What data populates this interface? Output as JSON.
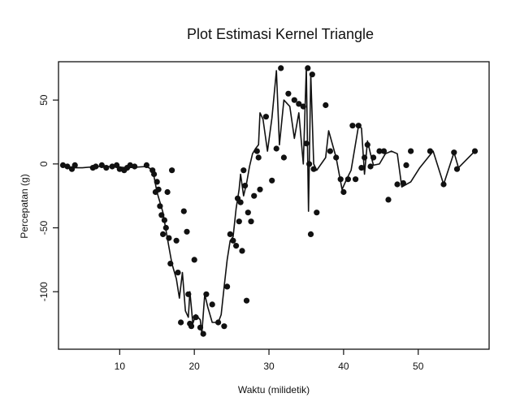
{
  "chart_data": {
    "type": "scatter",
    "title": "Plot Estimasi Kernel Triangle",
    "xlabel": "Waktu (milidetik)",
    "ylabel": "Percepatan (g)",
    "xlim": [
      1.8,
      59.5
    ],
    "ylim": [
      -145,
      80
    ],
    "xticks": [
      10,
      20,
      30,
      40,
      50
    ],
    "yticks": [
      -100,
      -50,
      0,
      50
    ],
    "grid": false,
    "series": [
      {
        "role": "observations",
        "x": [
          2.4,
          3.0,
          3.6,
          4.0,
          6.4,
          6.8,
          7.6,
          8.2,
          9.0,
          9.6,
          10.0,
          10.6,
          11.0,
          11.4,
          12.0,
          13.6,
          14.4,
          14.6,
          14.8,
          15.0,
          15.2,
          15.4,
          15.6,
          15.8,
          16.0,
          16.2,
          16.4,
          16.6,
          16.8,
          17.0,
          17.6,
          17.8,
          18.2,
          18.6,
          19.0,
          19.2,
          19.4,
          19.6,
          20.0,
          20.2,
          20.8,
          21.2,
          21.6,
          22.4,
          23.2,
          24.0,
          24.4,
          24.8,
          25.2,
          25.6,
          25.8,
          26.0,
          26.2,
          26.4,
          26.6,
          26.8,
          27.0,
          27.2,
          27.6,
          28.0,
          28.4,
          28.6,
          28.8,
          29.6,
          30.4,
          31.0,
          31.6,
          32.0,
          32.6,
          33.4,
          34.0,
          34.6,
          35.0,
          35.2,
          35.4,
          35.6,
          35.8,
          36.0,
          36.4,
          37.6,
          38.2,
          39.0,
          39.6,
          40.0,
          40.6,
          41.2,
          41.6,
          42.0,
          42.4,
          42.8,
          43.2,
          43.6,
          44.0,
          44.8,
          45.4,
          46.0,
          47.2,
          48.0,
          48.4,
          49.0,
          51.6,
          53.4,
          54.8,
          55.2,
          57.6
        ],
        "y": [
          -1,
          -2,
          -4,
          -1,
          -3,
          -2,
          -1,
          -3,
          -2,
          -1,
          -4,
          -5,
          -3,
          -1,
          -2,
          -1,
          -5,
          -8,
          -22,
          -14,
          -20,
          -33,
          -40,
          -55,
          -44,
          -50,
          -22,
          -58,
          -78,
          -5,
          -60,
          -85,
          -124,
          -37,
          -53,
          -102,
          -125,
          -127,
          -75,
          -120,
          -128,
          -133,
          -102,
          -110,
          -124,
          -127,
          -96,
          -55,
          -60,
          -64,
          -27,
          -45,
          -30,
          -68,
          -5,
          -17,
          -107,
          -38,
          -45,
          -25,
          10,
          5,
          -20,
          37,
          -13,
          12,
          75,
          5,
          55,
          50,
          47,
          45,
          16,
          75,
          0,
          -55,
          70,
          -4,
          -38,
          46,
          10,
          5,
          -12,
          -22,
          -12,
          30,
          -12,
          30,
          -3,
          5,
          15,
          -2,
          5,
          10,
          10,
          -28,
          -16,
          -15,
          -1,
          10,
          10,
          -16,
          9,
          -4,
          10
        ]
      },
      {
        "role": "kernel-estimate",
        "x": [
          2.4,
          3.6,
          5.0,
          7.0,
          9.0,
          11.0,
          13.6,
          14.2,
          14.6,
          15.0,
          15.4,
          15.8,
          16.2,
          16.6,
          17.0,
          17.6,
          18.0,
          18.4,
          18.8,
          19.2,
          19.4,
          19.6,
          19.8,
          20.2,
          20.8,
          21.0,
          21.4,
          21.8,
          22.4,
          23.2,
          23.6,
          24.0,
          24.4,
          24.8,
          25.2,
          25.6,
          26.0,
          26.2,
          26.6,
          27.0,
          27.4,
          27.8,
          28.2,
          28.6,
          28.8,
          29.2,
          29.8,
          30.4,
          31.0,
          31.4,
          32.0,
          32.8,
          33.4,
          34.0,
          34.6,
          35.0,
          35.3,
          35.6,
          36.0,
          36.4,
          37.6,
          38.0,
          39.0,
          39.8,
          40.4,
          41.0,
          42.0,
          42.4,
          42.8,
          43.2,
          43.6,
          44.0,
          44.8,
          45.6,
          46.4,
          47.2,
          47.8,
          49.0,
          50.2,
          52.0,
          53.4,
          54.8,
          55.4,
          57.6
        ],
        "y": [
          -1,
          -3,
          -3,
          -2,
          -2,
          -3,
          -2,
          -4,
          -10,
          -22,
          -30,
          -38,
          -52,
          -65,
          -78,
          -90,
          -105,
          -85,
          -115,
          -120,
          -100,
          -112,
          -125,
          -118,
          -122,
          -133,
          -102,
          -112,
          -124,
          -124,
          -118,
          -96,
          -75,
          -60,
          -57,
          -35,
          -20,
          -8,
          -25,
          -15,
          -2,
          8,
          12,
          15,
          40,
          35,
          10,
          36,
          73,
          15,
          50,
          45,
          20,
          40,
          0,
          75,
          -37,
          70,
          0,
          -5,
          5,
          26,
          5,
          -20,
          -12,
          -5,
          30,
          28,
          -8,
          18,
          8,
          -1,
          0,
          8,
          10,
          8,
          -18,
          -14,
          -3,
          10,
          -16,
          9,
          -3,
          10
        ]
      }
    ]
  }
}
